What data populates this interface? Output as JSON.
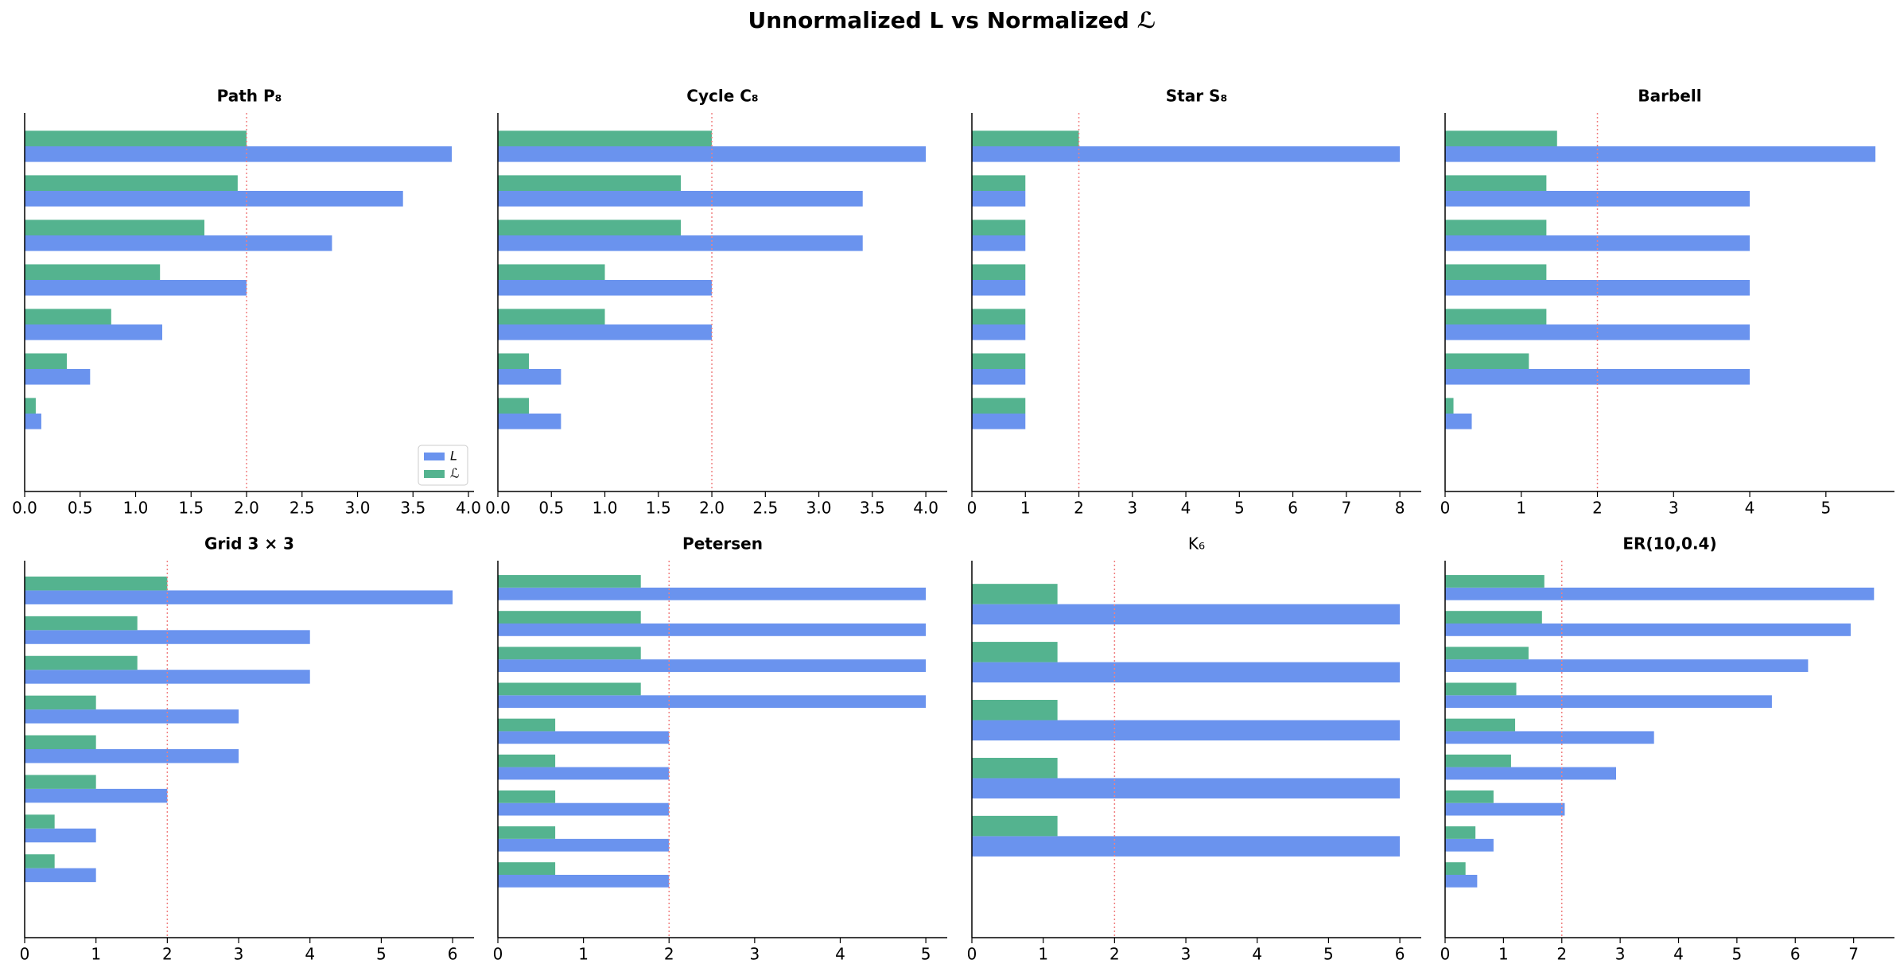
{
  "title": "Unnormalized L vs Normalized ℒ",
  "chart_data": [
    {
      "type": "bar",
      "title": "Path P₈",
      "categories": [
        null,
        null,
        null,
        null,
        null,
        null,
        null,
        null
      ],
      "series": [
        {
          "name": "L",
          "color": "#6a93ee",
          "values": [
            0,
            0.15,
            0.59,
            1.24,
            2.0,
            2.77,
            3.41,
            3.85
          ]
        },
        {
          "name": "ℒ",
          "color": "#54b38f",
          "values": [
            0,
            0.1,
            0.38,
            0.78,
            1.22,
            1.62,
            1.92,
            2.0
          ]
        }
      ],
      "xlim": [
        0,
        4.05
      ],
      "xticks": [
        {
          "value": 0,
          "label": "0.0"
        },
        0.5,
        {
          "value": 1,
          "label": "1.0"
        },
        1.5,
        {
          "value": 2,
          "label": "2.0"
        },
        2.5,
        {
          "value": 3,
          "label": "3.0"
        },
        3.5,
        {
          "value": 4,
          "label": "4.0"
        }
      ],
      "ref_line": 2,
      "legend": "lower right"
    },
    {
      "type": "bar",
      "title": "Cycle C₈",
      "categories": [
        null,
        null,
        null,
        null,
        null,
        null,
        null,
        null
      ],
      "series": [
        {
          "name": "L",
          "color": "#6a93ee",
          "values": [
            0,
            0.59,
            0.59,
            2.0,
            2.0,
            3.41,
            3.41,
            4.0
          ]
        },
        {
          "name": "ℒ",
          "color": "#54b38f",
          "values": [
            0,
            0.29,
            0.29,
            1.0,
            1.0,
            1.71,
            1.71,
            2.0
          ]
        }
      ],
      "xlim": [
        0,
        4.2
      ],
      "xticks": [
        {
          "value": 0,
          "label": "0.0"
        },
        0.5,
        {
          "value": 1,
          "label": "1.0"
        },
        1.5,
        {
          "value": 2,
          "label": "2.0"
        },
        2.5,
        {
          "value": 3,
          "label": "3.0"
        },
        3.5,
        {
          "value": 4,
          "label": "4.0"
        }
      ],
      "ref_line": 2
    },
    {
      "type": "bar",
      "title": "Star S₈",
      "categories": [
        null,
        null,
        null,
        null,
        null,
        null,
        null,
        null
      ],
      "series": [
        {
          "name": "L",
          "color": "#6a93ee",
          "values": [
            0,
            1,
            1,
            1,
            1,
            1,
            1,
            8
          ]
        },
        {
          "name": "ℒ",
          "color": "#54b38f",
          "values": [
            0,
            1,
            1,
            1,
            1,
            1,
            1,
            2
          ]
        }
      ],
      "xlim": [
        0,
        8.4
      ],
      "xticks": [
        0,
        1,
        2,
        3,
        4,
        5,
        6,
        7,
        8
      ],
      "ref_line": 2
    },
    {
      "type": "bar",
      "title": "Barbell",
      "categories": [
        null,
        null,
        null,
        null,
        null,
        null,
        null,
        null
      ],
      "series": [
        {
          "name": "L",
          "color": "#6a93ee",
          "values": [
            0,
            0.35,
            4,
            4,
            4,
            4,
            4,
            5.65
          ]
        },
        {
          "name": "ℒ",
          "color": "#54b38f",
          "values": [
            0,
            0.11,
            1.1,
            1.33,
            1.33,
            1.33,
            1.33,
            1.47
          ]
        }
      ],
      "xlim": [
        0,
        5.9
      ],
      "xticks": [
        0,
        1,
        2,
        3,
        4,
        5
      ],
      "ref_line": 2
    },
    {
      "type": "bar",
      "title": "Grid 3 × 3",
      "categories": [
        null,
        null,
        null,
        null,
        null,
        null,
        null,
        null,
        null
      ],
      "series": [
        {
          "name": "L",
          "color": "#6a93ee",
          "values": [
            0,
            1,
            1,
            2,
            3,
            3,
            4,
            4,
            6
          ]
        },
        {
          "name": "ℒ",
          "color": "#54b38f",
          "values": [
            0,
            0.42,
            0.42,
            1.0,
            1.0,
            1.0,
            1.58,
            1.58,
            2.0
          ]
        }
      ],
      "xlim": [
        0,
        6.3
      ],
      "xticks": [
        0,
        1,
        2,
        3,
        4,
        5,
        6
      ],
      "ref_line": 2
    },
    {
      "type": "bar",
      "title": "Petersen",
      "categories": [
        null,
        null,
        null,
        null,
        null,
        null,
        null,
        null,
        null,
        null
      ],
      "series": [
        {
          "name": "L",
          "color": "#6a93ee",
          "values": [
            0,
            2,
            2,
            2,
            2,
            2,
            5,
            5,
            5,
            5
          ]
        },
        {
          "name": "ℒ",
          "color": "#54b38f",
          "values": [
            0,
            0.67,
            0.67,
            0.67,
            0.67,
            0.67,
            1.67,
            1.67,
            1.67,
            1.67
          ]
        }
      ],
      "xlim": [
        0,
        5.25
      ],
      "xticks": [
        0,
        1,
        2,
        3,
        4,
        5
      ],
      "ref_line": 2
    },
    {
      "type": "bar",
      "title": "K₆",
      "categories": [
        null,
        null,
        null,
        null,
        null,
        null
      ],
      "series": [
        {
          "name": "L",
          "color": "#6a93ee",
          "values": [
            0,
            6,
            6,
            6,
            6,
            6
          ]
        },
        {
          "name": "ℒ",
          "color": "#54b38f",
          "values": [
            0,
            1.2,
            1.2,
            1.2,
            1.2,
            1.2
          ]
        }
      ],
      "xlim": [
        0,
        6.3
      ],
      "xticks": [
        0,
        1,
        2,
        3,
        4,
        5,
        6
      ],
      "ref_line": 2
    },
    {
      "type": "bar",
      "title": "ER(10,0.4)",
      "categories": [
        null,
        null,
        null,
        null,
        null,
        null,
        null,
        null,
        null,
        null
      ],
      "series": [
        {
          "name": "L",
          "color": "#6a93ee",
          "values": [
            0,
            0.55,
            0.83,
            2.05,
            2.93,
            3.58,
            5.6,
            6.22,
            6.95,
            7.35
          ]
        },
        {
          "name": "ℒ",
          "color": "#54b38f",
          "values": [
            0,
            0.35,
            0.52,
            0.83,
            1.13,
            1.2,
            1.22,
            1.43,
            1.66,
            1.7
          ]
        }
      ],
      "xlim": [
        0,
        7.7
      ],
      "xticks": [
        0,
        1,
        2,
        3,
        4,
        5,
        6,
        7
      ],
      "ref_line": 2
    }
  ]
}
